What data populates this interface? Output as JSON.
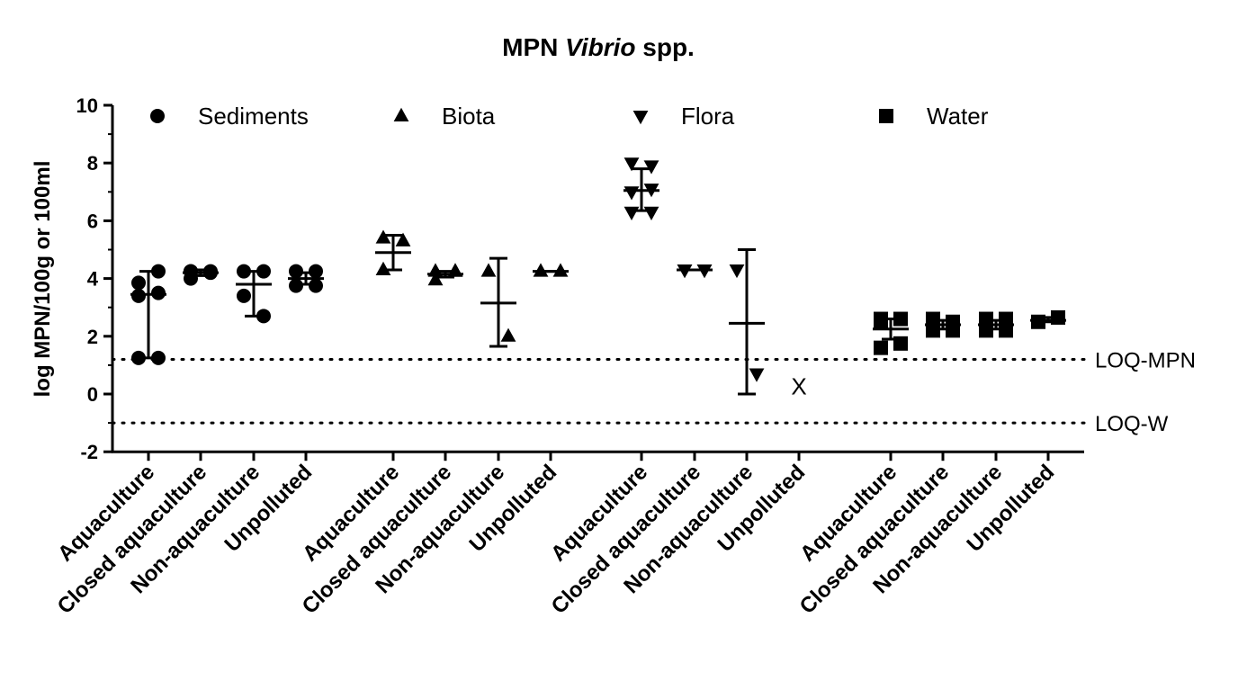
{
  "chart_data": {
    "type": "scatter",
    "title_parts": [
      "MPN ",
      "Vibrio",
      " spp."
    ],
    "ylabel": "log MPN/100g or 100ml",
    "ylim": [
      -2,
      10
    ],
    "yticks": [
      -2,
      0,
      2,
      4,
      6,
      8,
      10
    ],
    "ytick_labels": [
      "-2",
      "0",
      "2",
      "4",
      "6",
      "8",
      "10"
    ],
    "legend": [
      {
        "name": "Sediments",
        "marker": "circle"
      },
      {
        "name": "Biota",
        "marker": "triangle-up"
      },
      {
        "name": "Flora",
        "marker": "triangle-down"
      },
      {
        "name": "Water",
        "marker": "square"
      }
    ],
    "legend_position": "top",
    "reference_lines": [
      {
        "label": "LOQ-MPN",
        "y": 1.2
      },
      {
        "label": "LOQ-W",
        "y": -1.0
      }
    ],
    "categories": [
      "Aquaculture",
      "Closed aquaculture",
      "Non-aquaculture",
      "Unpolluted"
    ],
    "series": [
      {
        "name": "Sediments",
        "marker": "circle",
        "groups": [
          {
            "category": "Aquaculture",
            "points": [
              1.25,
              1.25,
              3.4,
              3.5,
              3.85,
              4.25
            ],
            "mean": 3.45,
            "err": [
              1.25,
              4.25
            ]
          },
          {
            "category": "Closed aquaculture",
            "points": [
              4.25,
              4.25,
              4.25,
              4.2,
              4.0
            ],
            "mean": 4.2,
            "err": [
              4.1,
              4.3
            ]
          },
          {
            "category": "Non-aquaculture",
            "points": [
              4.25,
              4.25,
              3.4,
              2.7
            ],
            "mean": 3.8,
            "err": [
              2.7,
              4.25
            ]
          },
          {
            "category": "Unpolluted",
            "points": [
              4.25,
              4.25,
              3.75,
              3.75
            ],
            "mean": 4.0,
            "err": [
              3.8,
              4.2
            ]
          }
        ]
      },
      {
        "name": "Biota",
        "marker": "triangle-up",
        "groups": [
          {
            "category": "Aquaculture",
            "points": [
              5.4,
              5.3,
              4.3
            ],
            "mean": 4.9,
            "err": [
              4.3,
              5.5
            ]
          },
          {
            "category": "Closed aquaculture",
            "points": [
              3.95,
              4.25,
              4.25,
              4.25
            ],
            "mean": 4.15,
            "err": [
              4.05,
              4.25
            ]
          },
          {
            "category": "Non-aquaculture",
            "points": [
              4.25,
              2.0
            ],
            "mean": 3.15,
            "err": [
              1.65,
              4.7
            ]
          },
          {
            "category": "Unpolluted",
            "points": [
              4.25,
              4.25
            ],
            "mean": 4.25,
            "err": [
              4.25,
              4.25
            ]
          }
        ]
      },
      {
        "name": "Flora",
        "marker": "triangle-down",
        "groups": [
          {
            "category": "Aquaculture",
            "points": [
              8.0,
              7.9,
              7.0,
              7.1,
              6.3,
              6.3
            ],
            "mean": 7.05,
            "err": [
              6.35,
              7.8
            ]
          },
          {
            "category": "Closed aquaculture",
            "points": [
              4.3,
              4.3,
              4.3,
              4.3
            ],
            "mean": 4.3,
            "err": [
              4.3,
              4.3
            ]
          },
          {
            "category": "Non-aquaculture",
            "points": [
              4.3,
              0.7
            ],
            "mean": 2.45,
            "err": [
              0.0,
              5.0
            ]
          },
          {
            "category": "Unpolluted",
            "points": [],
            "mean": null,
            "err": null,
            "annotation": "X",
            "annotation_y": 0.3
          }
        ]
      },
      {
        "name": "Water",
        "marker": "square",
        "groups": [
          {
            "category": "Aquaculture",
            "points": [
              2.6,
              2.6,
              2.5,
              1.75,
              1.6
            ],
            "mean": 2.25,
            "err": [
              1.9,
              2.6
            ]
          },
          {
            "category": "Closed aquaculture",
            "points": [
              2.6,
              2.5,
              2.4,
              2.3,
              2.2,
              2.2
            ],
            "mean": 2.4,
            "err": [
              2.25,
              2.55
            ]
          },
          {
            "category": "Non-aquaculture",
            "points": [
              2.6,
              2.6,
              2.2,
              2.2
            ],
            "mean": 2.4,
            "err": [
              2.25,
              2.55
            ]
          },
          {
            "category": "Unpolluted",
            "points": [
              2.5,
              2.65
            ],
            "mean": 2.55,
            "err": [
              2.5,
              2.65
            ]
          }
        ]
      }
    ]
  }
}
